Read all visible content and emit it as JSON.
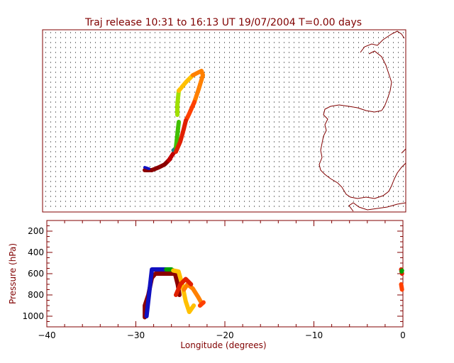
{
  "chart_data": [
    {
      "type": "map",
      "title": "Traj release 10:31 to 16:13 UT 19/07/2004    T=0.00 days",
      "grid": "dotted",
      "colors": {
        "frame": "#800000",
        "coastline": "#800000",
        "grid_dots": "#000000"
      },
      "trajectory_colors": [
        "#8b0000",
        "#c00000",
        "#e02000",
        "#ff4000",
        "#ff8000",
        "#ffc000",
        "#a0e000",
        "#40c000",
        "#00a000"
      ]
    },
    {
      "type": "line",
      "xlabel": "Longitude  (degrees)",
      "ylabel": "Pressure  (hPa)",
      "xlim": [
        -40,
        0
      ],
      "ylim": [
        1100,
        100
      ],
      "xticks": [
        -40,
        -30,
        -20,
        -10,
        0
      ],
      "yticks": [
        200,
        400,
        600,
        800,
        1000
      ],
      "series": [
        {
          "color": "#8b0000",
          "x": [
            -29,
            -29,
            -28.6,
            -28.2,
            -27.8,
            -27,
            -26.2,
            -25.6,
            -25.3,
            -25.1
          ],
          "y": [
            1010,
            900,
            800,
            640,
            600,
            600,
            600,
            600,
            700,
            800
          ]
        },
        {
          "color": "#1010c0",
          "x": [
            -28.8,
            -28.2,
            -27.6,
            -27,
            -26.6
          ],
          "y": [
            1000,
            560,
            560,
            560,
            560
          ]
        },
        {
          "color": "#00a000",
          "x": [
            -26.6,
            -26,
            -25.8
          ],
          "y": [
            560,
            560,
            570
          ]
        },
        {
          "color": "#ffc000",
          "x": [
            -25.8,
            -25.2,
            -24.8,
            -24.4,
            -24.0,
            -23.5
          ],
          "y": [
            570,
            580,
            700,
            860,
            960,
            900
          ]
        },
        {
          "color": "#ff8000",
          "x": [
            -24.6,
            -24.2,
            -23.6,
            -23.0,
            -22.6
          ],
          "y": [
            750,
            700,
            740,
            820,
            880
          ]
        },
        {
          "color": "#e02000",
          "x": [
            -25.5,
            -25.0,
            -24.4,
            -23.8
          ],
          "y": [
            800,
            700,
            650,
            700
          ]
        },
        {
          "color": "#ff4000",
          "x": [
            -22.8,
            -22.4
          ],
          "y": [
            900,
            870
          ]
        },
        {
          "color": "#e02000",
          "x": [
            -0.2,
            -0.1
          ],
          "y": [
            560,
            600
          ]
        },
        {
          "color": "#ff4000",
          "x": [
            -0.2,
            -0.1
          ],
          "y": [
            700,
            750
          ]
        },
        {
          "color": "#00a000",
          "x": [
            -0.15,
            -0.1
          ],
          "y": [
            580,
            570
          ]
        }
      ]
    }
  ]
}
